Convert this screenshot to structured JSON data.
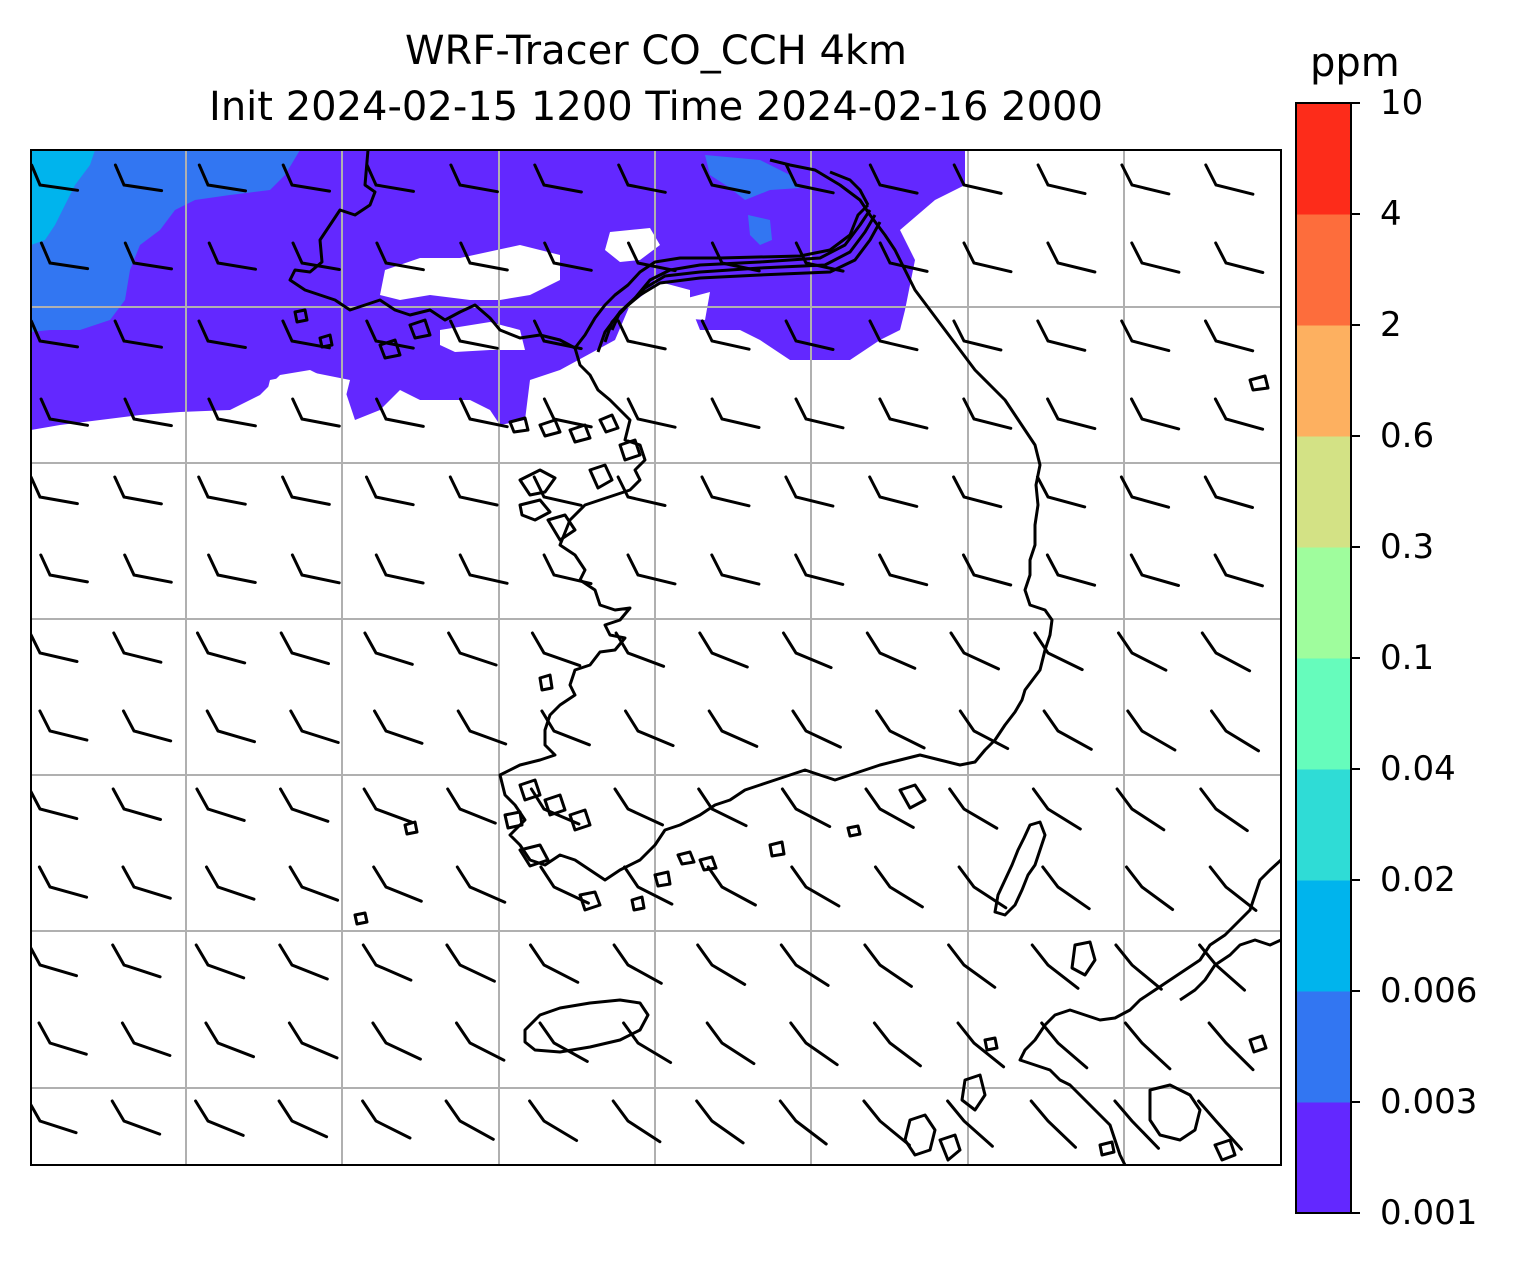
{
  "title": {
    "line1": "WRF-Tracer CO_CCH 4km",
    "line2": "Init 2024-02-15 1200 Time 2024-02-16 2000"
  },
  "colorbar": {
    "unit": "ppm",
    "ticks": [
      "0.001",
      "0.003",
      "0.006",
      "0.02",
      "0.04",
      "0.1",
      "0.3",
      "0.6",
      "2",
      "4",
      "10"
    ],
    "colors": [
      "#6328ff",
      "#3276f2",
      "#00b4ed",
      "#2fdcd6",
      "#66fcbc",
      "#9ffd9d",
      "#d3e285",
      "#fdb060",
      "#fd6d3c",
      "#fd2c1a"
    ]
  },
  "map": {
    "gridlines": true,
    "coastline_color": "#000000",
    "wind_barbs": "westerly to northwesterly, 10 kt"
  }
}
